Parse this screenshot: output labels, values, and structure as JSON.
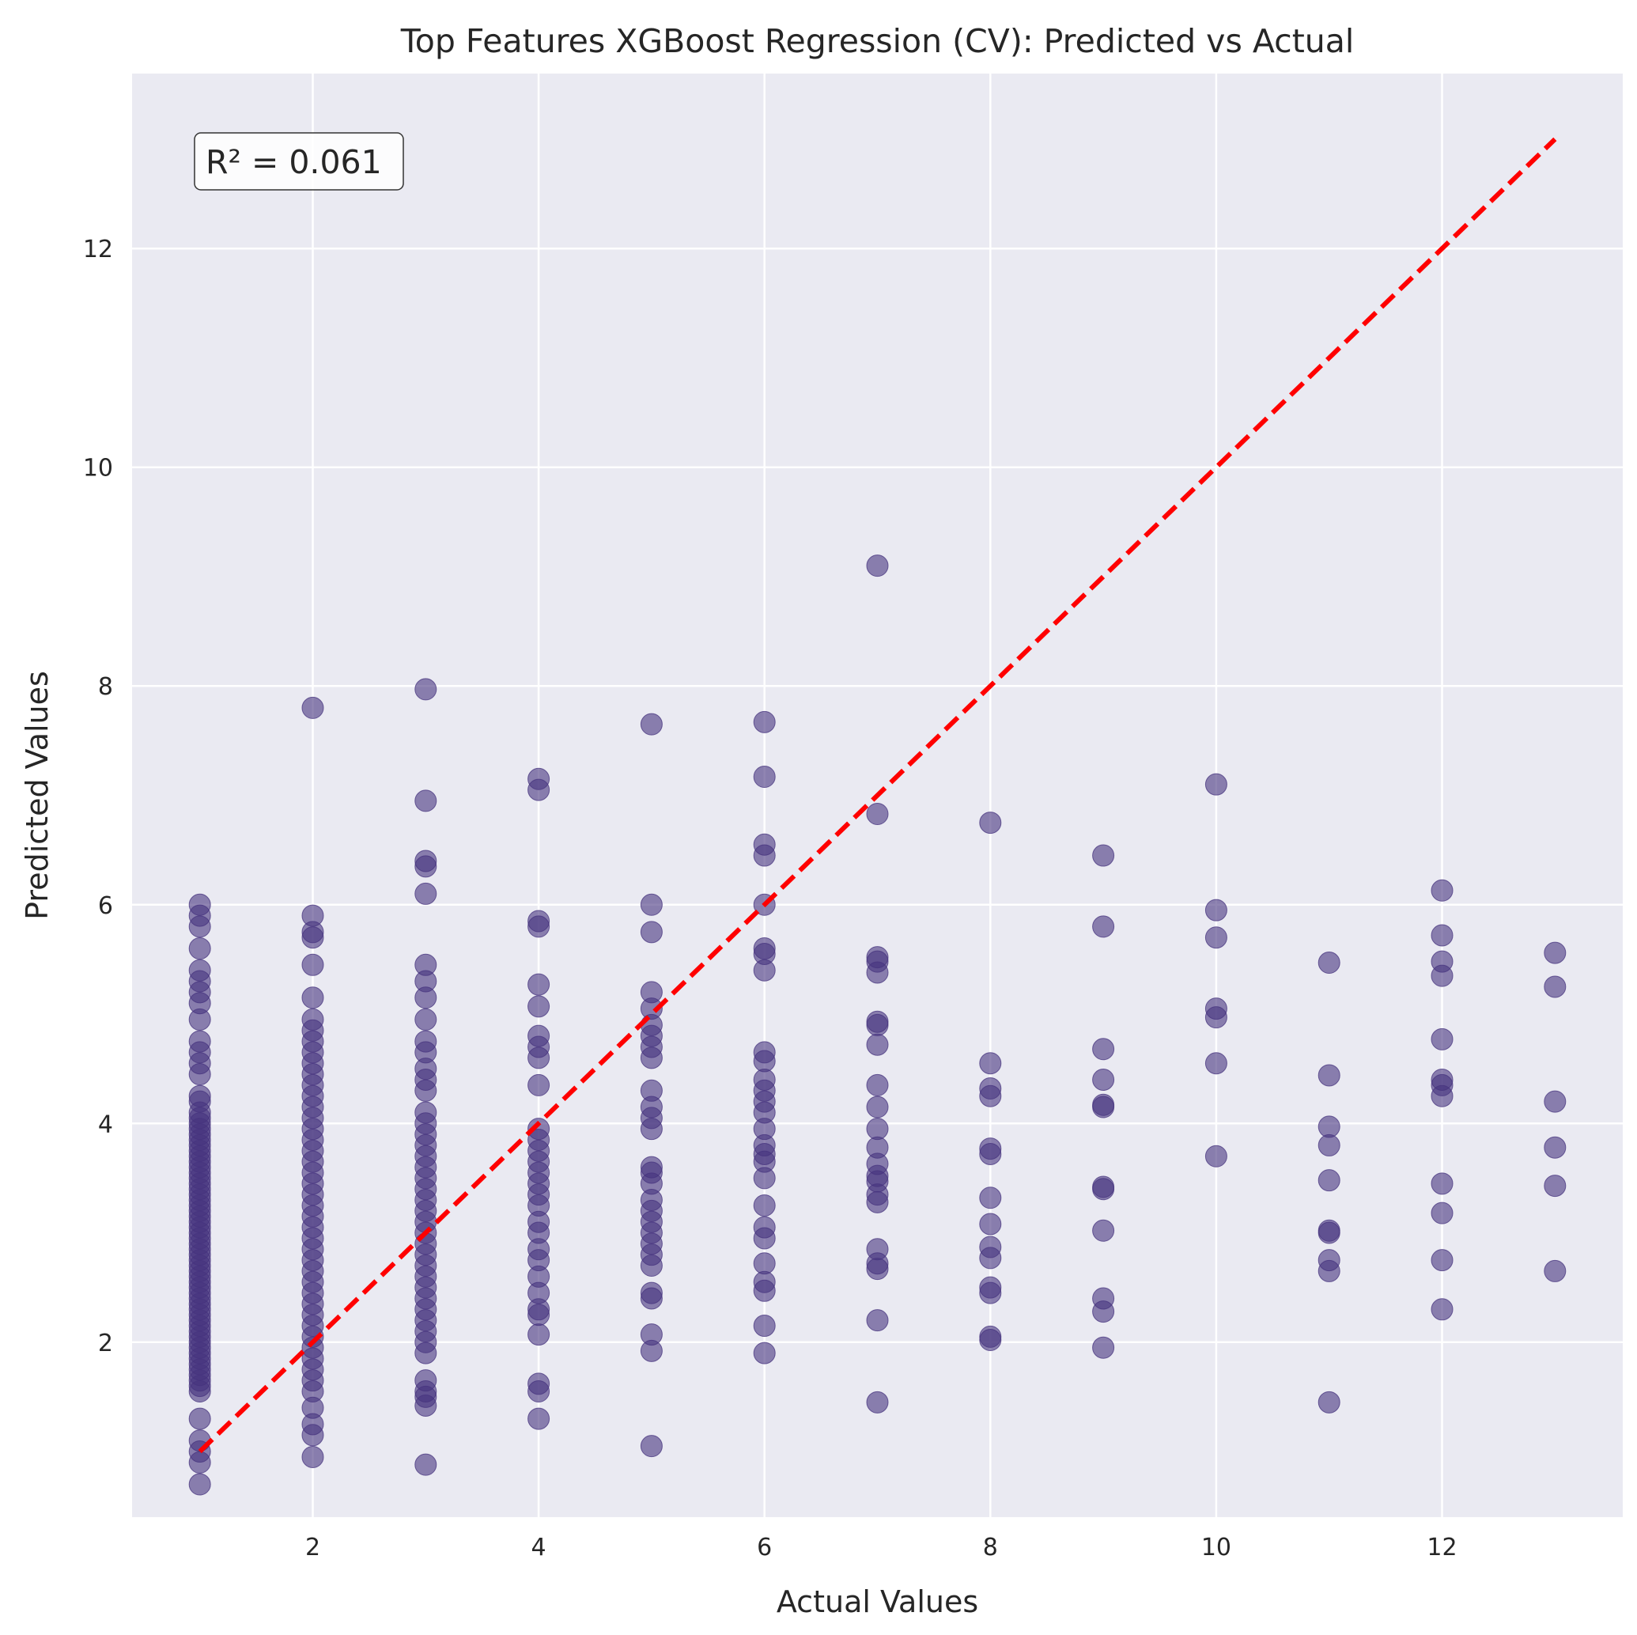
{
  "chart_data": {
    "type": "scatter",
    "title": "Top Features XGBoost Regression (CV): Predicted vs Actual",
    "xlabel": "Actual Values",
    "ylabel": "Predicted Values",
    "xlim": [
      0.4,
      13.6
    ],
    "ylim": [
      0.4,
      13.6
    ],
    "xticks": [
      2,
      4,
      6,
      8,
      10,
      12
    ],
    "yticks": [
      2,
      4,
      6,
      8,
      10,
      12
    ],
    "grid": true,
    "background_color": "#eaeaf2",
    "point_color": "#46337e",
    "point_alpha": 0.6,
    "reference_line": {
      "from": [
        1,
        1
      ],
      "to": [
        13,
        13
      ],
      "style": "dashed",
      "color": "#ff0000"
    },
    "annotation": {
      "text": "R² = 0.061",
      "position": "top-left"
    },
    "points": [
      {
        "actual": 1,
        "predicted": [
          0.7,
          0.9,
          1.0,
          1.1,
          1.3,
          1.55,
          1.6,
          1.65,
          1.7,
          1.75,
          1.8,
          1.85,
          1.9,
          1.95,
          2.0,
          2.05,
          2.1,
          2.15,
          2.2,
          2.25,
          2.3,
          2.35,
          2.4,
          2.45,
          2.5,
          2.55,
          2.6,
          2.65,
          2.7,
          2.75,
          2.8,
          2.85,
          2.9,
          2.95,
          3.0,
          3.05,
          3.1,
          3.15,
          3.2,
          3.25,
          3.3,
          3.35,
          3.4,
          3.45,
          3.5,
          3.55,
          3.6,
          3.65,
          3.7,
          3.75,
          3.8,
          3.85,
          3.9,
          3.95,
          4.0,
          4.05,
          4.1,
          4.2,
          4.25,
          4.45,
          4.55,
          4.65,
          4.75,
          4.95,
          5.1,
          5.2,
          5.3,
          5.4,
          5.6,
          5.8,
          5.9,
          6.0
        ]
      },
      {
        "actual": 2,
        "predicted": [
          0.95,
          1.15,
          1.25,
          1.4,
          1.55,
          1.65,
          1.75,
          1.85,
          1.95,
          2.05,
          2.15,
          2.25,
          2.35,
          2.45,
          2.55,
          2.65,
          2.75,
          2.85,
          2.95,
          3.05,
          3.15,
          3.25,
          3.35,
          3.45,
          3.55,
          3.65,
          3.75,
          3.85,
          3.95,
          4.05,
          4.15,
          4.25,
          4.35,
          4.45,
          4.55,
          4.65,
          4.75,
          4.85,
          4.95,
          5.15,
          5.45,
          5.7,
          5.75,
          5.9,
          7.8
        ]
      },
      {
        "actual": 3,
        "predicted": [
          0.88,
          1.42,
          1.5,
          1.55,
          1.65,
          1.9,
          2.0,
          2.1,
          2.2,
          2.3,
          2.4,
          2.5,
          2.6,
          2.7,
          2.8,
          2.9,
          3.0,
          3.1,
          3.2,
          3.3,
          3.4,
          3.5,
          3.6,
          3.7,
          3.8,
          3.9,
          4.0,
          4.1,
          4.3,
          4.4,
          4.5,
          4.65,
          4.75,
          4.95,
          5.15,
          5.3,
          5.45,
          6.1,
          6.35,
          6.4,
          6.95,
          7.97
        ]
      },
      {
        "actual": 4,
        "predicted": [
          1.3,
          1.55,
          1.62,
          2.07,
          2.25,
          2.3,
          2.45,
          2.6,
          2.75,
          2.85,
          3.0,
          3.1,
          3.25,
          3.35,
          3.45,
          3.55,
          3.65,
          3.75,
          3.85,
          3.95,
          4.35,
          4.6,
          4.7,
          4.8,
          5.07,
          5.27,
          5.8,
          5.85,
          7.05,
          7.15
        ]
      },
      {
        "actual": 5,
        "predicted": [
          1.05,
          1.92,
          2.07,
          2.4,
          2.45,
          2.7,
          2.8,
          2.9,
          3.0,
          3.1,
          3.2,
          3.3,
          3.45,
          3.55,
          3.6,
          3.95,
          4.05,
          4.15,
          4.3,
          4.6,
          4.7,
          4.8,
          4.9,
          5.05,
          5.2,
          5.75,
          6.0,
          7.65
        ]
      },
      {
        "actual": 6,
        "predicted": [
          1.9,
          2.15,
          2.47,
          2.55,
          2.72,
          2.95,
          3.05,
          3.25,
          3.5,
          3.65,
          3.72,
          3.8,
          3.95,
          4.1,
          4.2,
          4.3,
          4.4,
          4.57,
          4.65,
          5.4,
          5.55,
          5.6,
          6.0,
          6.45,
          6.55,
          7.17,
          7.67
        ]
      },
      {
        "actual": 7,
        "predicted": [
          1.45,
          2.2,
          2.67,
          2.72,
          2.85,
          3.28,
          3.35,
          3.47,
          3.52,
          3.63,
          3.78,
          3.95,
          4.15,
          4.35,
          4.72,
          4.9,
          4.93,
          5.38,
          5.48,
          5.52,
          6.83,
          9.1
        ]
      },
      {
        "actual": 8,
        "predicted": [
          2.02,
          2.05,
          2.45,
          2.5,
          2.77,
          2.87,
          3.08,
          3.32,
          3.72,
          3.77,
          4.25,
          4.32,
          4.55,
          6.75
        ]
      },
      {
        "actual": 9,
        "predicted": [
          1.95,
          2.28,
          2.4,
          3.02,
          3.4,
          3.42,
          4.15,
          4.17,
          4.4,
          4.68,
          5.8,
          6.45
        ]
      },
      {
        "actual": 10,
        "predicted": [
          3.7,
          4.55,
          4.97,
          5.05,
          5.7,
          5.95,
          7.1
        ]
      },
      {
        "actual": 11,
        "predicted": [
          1.45,
          2.65,
          2.75,
          3.0,
          3.02,
          3.48,
          3.8,
          3.97,
          4.44,
          5.47
        ]
      },
      {
        "actual": 12,
        "predicted": [
          2.3,
          2.75,
          3.18,
          3.45,
          4.25,
          4.35,
          4.4,
          4.77,
          5.35,
          5.48,
          5.72,
          6.13
        ]
      },
      {
        "actual": 13,
        "predicted": [
          2.65,
          3.43,
          3.78,
          4.2,
          5.25,
          5.56
        ]
      }
    ]
  }
}
